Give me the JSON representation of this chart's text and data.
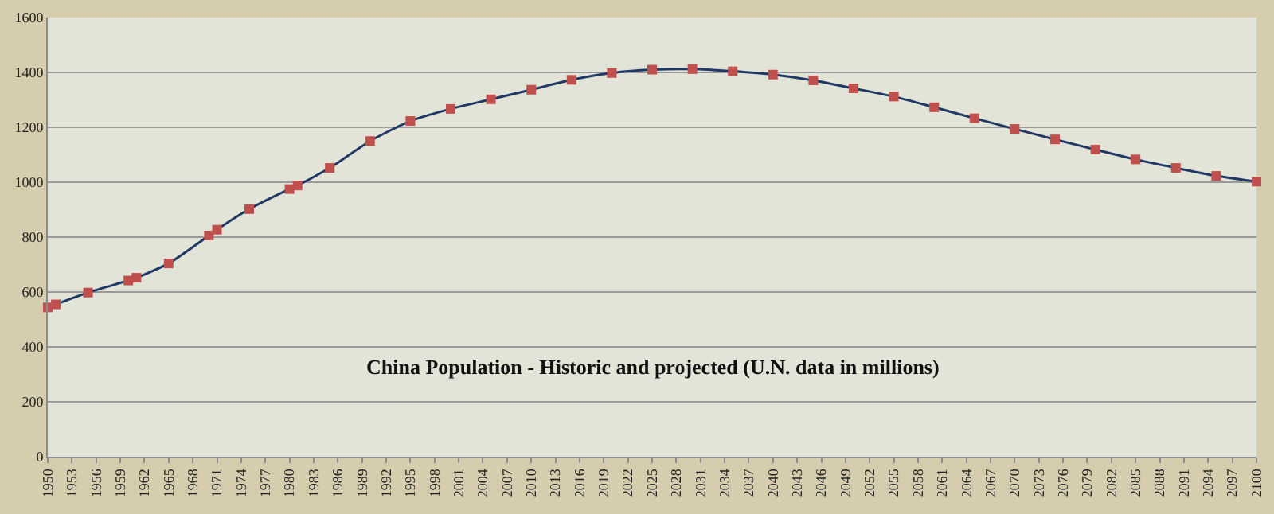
{
  "chart_data": {
    "type": "line",
    "title": "China Population - Historic and projected (U.N. data in millions)",
    "x": [
      1950,
      1951,
      1955,
      1960,
      1961,
      1965,
      1970,
      1971,
      1975,
      1980,
      1981,
      1985,
      1990,
      1995,
      2000,
      2005,
      2010,
      2015,
      2020,
      2025,
      2030,
      2035,
      2040,
      2045,
      2050,
      2055,
      2060,
      2065,
      2070,
      2075,
      2080,
      2085,
      2090,
      2095,
      2100
    ],
    "series": [
      {
        "color": "#1f3864",
        "colors": [
          "#c0504d",
          "#c0504d",
          "#c0504d",
          "#c0504d",
          "#c0504d",
          "#c0504d",
          "#c0504d",
          "#c0504d",
          "#c0504d",
          "#c0504d",
          "#c0504d",
          "#c0504d",
          "#c0504d",
          "#c0504d",
          "#c0504d",
          "#c0504d",
          "#c0504d",
          "#c0504d",
          "#c0504d",
          "#c0504d",
          "#c0504d",
          "#c0504d",
          "#c0504d",
          "#c0504d",
          "#c0504d",
          "#c0504d",
          "#c0504d",
          "#c0504d",
          "#c0504d",
          "#c0504d",
          "#c0504d",
          "#c0504d",
          "#c0504d",
          "#c0504d",
          "#c0504d"
        ],
        "values": [
          544,
          555,
          598,
          642,
          652,
          704,
          806,
          827,
          902,
          975,
          988,
          1052,
          1150,
          1223,
          1267,
          1302,
          1337,
          1373,
          1398,
          1410,
          1412,
          1404,
          1392,
          1371,
          1342,
          1312,
          1273,
          1233,
          1194,
          1156,
          1119,
          1083,
          1052,
          1023,
          1002
        ]
      }
    ],
    "xlim": [
      1950,
      2100
    ],
    "xticks": [
      1950,
      1953,
      1956,
      1959,
      1962,
      1965,
      1968,
      1971,
      1974,
      1977,
      1980,
      1983,
      1986,
      1989,
      1992,
      1995,
      1998,
      2001,
      2004,
      2007,
      2010,
      2013,
      2016,
      2019,
      2022,
      2025,
      2028,
      2031,
      2034,
      2037,
      2040,
      2043,
      2046,
      2049,
      2052,
      2055,
      2058,
      2061,
      2064,
      2067,
      2070,
      2073,
      2076,
      2079,
      2082,
      2085,
      2088,
      2091,
      2094,
      2097,
      2100
    ],
    "ylim": [
      0,
      1600
    ],
    "yticks": [
      0,
      200,
      400,
      600,
      800,
      1000,
      1200,
      1400,
      1600
    ],
    "grid": "y",
    "legend": false,
    "marker": "square",
    "line_style": "solid"
  }
}
